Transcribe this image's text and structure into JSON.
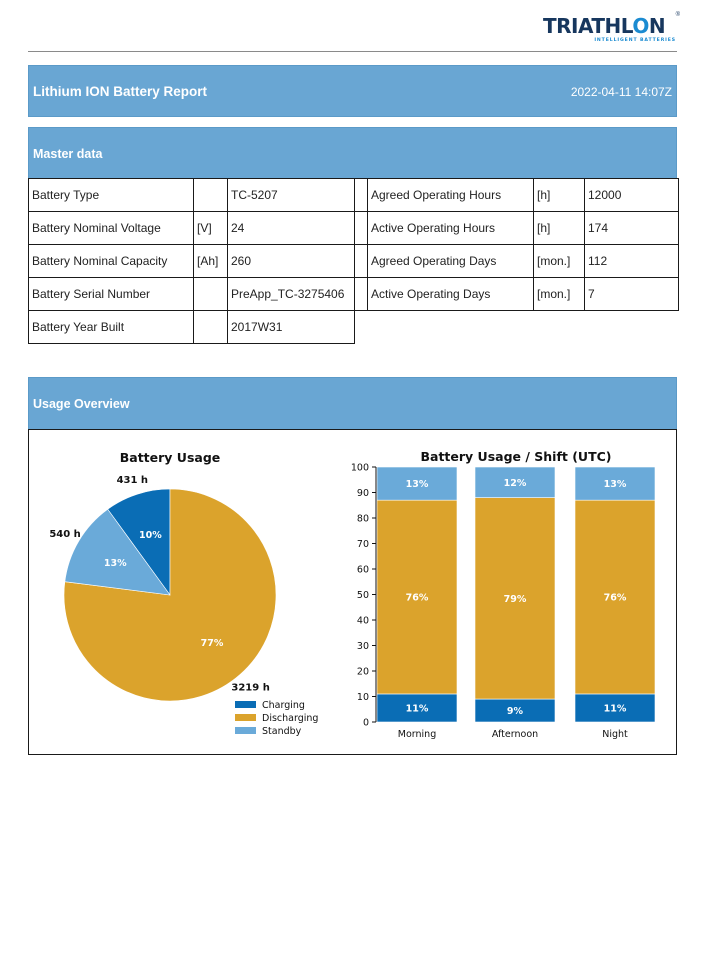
{
  "logo": {
    "text_main": "TRIATHL",
    "text_end": "N",
    "registered": "®",
    "tagline": "INTELLIGENT BATTERIES"
  },
  "header": {
    "title": "Lithium ION Battery Report",
    "timestamp": "2022-04-11 14:07Z"
  },
  "master": {
    "title": "Master data",
    "rows": [
      {
        "left_label": "Battery Type",
        "left_unit": "",
        "left_value": "TC-5207",
        "right_label": "Agreed Operating Hours",
        "right_unit": "[h]",
        "right_value": "12000"
      },
      {
        "left_label": "Battery Nominal Voltage",
        "left_unit": "[V]",
        "left_value": "24",
        "right_label": "Active Operating Hours",
        "right_unit": "[h]",
        "right_value": "174"
      },
      {
        "left_label": "Battery Nominal Capacity",
        "left_unit": "[Ah]",
        "left_value": "260",
        "right_label": "Agreed Operating Days",
        "right_unit": "[mon.]",
        "right_value": "112"
      },
      {
        "left_label": "Battery Serial Number",
        "left_unit": "",
        "left_value": "PreApp_TC-3275406",
        "right_label": "Active Operating Days",
        "right_unit": "[mon.]",
        "right_value": "7"
      },
      {
        "left_label": "Battery Year Built",
        "left_unit": "",
        "left_value": "2017W31"
      }
    ]
  },
  "usage": {
    "title": "Usage Overview"
  },
  "colors": {
    "band": "#69a6d3",
    "charging": "#0a6db5",
    "discharging": "#dba32c",
    "standby": "#6aaad9"
  },
  "chart_data": [
    {
      "type": "pie",
      "title": "Battery Usage",
      "labels": [
        "Charging",
        "Discharging",
        "Standby"
      ],
      "values": [
        10,
        77,
        13
      ],
      "value_labels": [
        "10%",
        "77%",
        "13%"
      ],
      "outer_labels": [
        "431 h",
        "3219 h",
        "540 h"
      ],
      "legend": [
        "Charging",
        "Discharging",
        "Standby"
      ],
      "legend_position": "bottom-right"
    },
    {
      "type": "bar",
      "stacked": true,
      "title": "Battery Usage / Shift (UTC)",
      "categories": [
        "Morning",
        "Afternoon",
        "Night"
      ],
      "series": [
        {
          "name": "Charging",
          "values": [
            11,
            9,
            11
          ],
          "labels": [
            "11%",
            "9%",
            "11%"
          ]
        },
        {
          "name": "Discharging",
          "values": [
            76,
            79,
            76
          ],
          "labels": [
            "76%",
            "79%",
            "76%"
          ]
        },
        {
          "name": "Standby",
          "values": [
            13,
            12,
            13
          ],
          "labels": [
            "13%",
            "12%",
            "13%"
          ]
        }
      ],
      "ylim": [
        0,
        100
      ],
      "yticks": [
        "0",
        "10",
        "20",
        "30",
        "40",
        "50",
        "60",
        "70",
        "80",
        "90",
        "100"
      ],
      "grid": false
    }
  ]
}
